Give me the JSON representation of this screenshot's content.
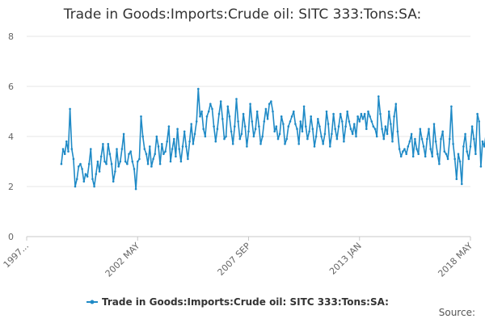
{
  "chart_data": {
    "type": "line",
    "title": "Trade in Goods:Imports:Crude oil: SITC 333:Tons:SA:",
    "xlabel": "",
    "ylabel": "",
    "ylim": [
      0,
      8
    ],
    "y_ticks": [
      "0",
      "2",
      "4",
      "6",
      "8"
    ],
    "x_ticks": [
      "1997...",
      "2002 MAY",
      "2007 SEP",
      "2013 JAN",
      "2018 MAY"
    ],
    "x_range": [
      "1997-01",
      "2018-05"
    ],
    "grid": true,
    "legend_position": "bottom",
    "color": "#1f8ac6",
    "series": [
      {
        "name": "Trade in Goods:Imports:Crude oil: SITC 333:Tons:SA:",
        "x_start": "1998-09",
        "frequency": "monthly",
        "values": [
          2.9,
          3.5,
          3.3,
          3.8,
          3.4,
          5.1,
          3.5,
          3.1,
          2.0,
          2.3,
          2.8,
          2.9,
          2.7,
          2.2,
          2.5,
          2.4,
          2.9,
          3.5,
          2.3,
          2.0,
          2.5,
          3.0,
          2.6,
          3.2,
          3.7,
          3.0,
          2.9,
          3.7,
          3.3,
          2.9,
          2.2,
          2.6,
          3.5,
          2.8,
          3.0,
          3.5,
          4.1,
          3.0,
          2.9,
          3.3,
          3.4,
          3.0,
          2.7,
          1.9,
          3.0,
          3.1,
          4.8,
          4.0,
          3.5,
          3.3,
          2.9,
          3.6,
          2.8,
          3.1,
          3.3,
          4.0,
          3.6,
          2.9,
          3.7,
          3.3,
          3.4,
          3.8,
          4.4,
          3.0,
          3.5,
          3.9,
          3.2,
          4.3,
          3.5,
          3.0,
          3.6,
          4.2,
          3.6,
          3.1,
          3.8,
          4.5,
          3.7,
          4.1,
          4.6,
          5.9,
          4.8,
          5.0,
          4.3,
          4.0,
          4.8,
          5.0,
          5.3,
          5.1,
          4.4,
          3.8,
          4.3,
          4.9,
          5.4,
          4.7,
          3.9,
          4.0,
          5.2,
          4.8,
          4.2,
          3.7,
          4.4,
          5.5,
          4.6,
          3.9,
          4.1,
          4.9,
          4.4,
          3.6,
          4.2,
          5.3,
          4.6,
          4.0,
          4.3,
          5.0,
          4.4,
          3.7,
          4.0,
          4.6,
          5.1,
          4.7,
          5.3,
          5.4,
          5.0,
          4.2,
          4.4,
          3.9,
          4.1,
          4.8,
          4.5,
          3.7,
          3.9,
          4.4,
          4.6,
          4.8,
          5.0,
          4.5,
          4.3,
          3.7,
          4.6,
          4.2,
          5.2,
          4.4,
          3.9,
          4.2,
          4.8,
          4.3,
          3.6,
          4.0,
          4.7,
          4.4,
          4.0,
          3.7,
          4.1,
          5.0,
          4.5,
          3.6,
          4.1,
          4.9,
          4.3,
          3.9,
          4.4,
          4.9,
          4.6,
          3.8,
          4.4,
          5.0,
          4.6,
          4.3,
          4.1,
          4.5,
          4.0,
          4.8,
          4.6,
          4.9,
          4.7,
          4.9,
          4.3,
          5.0,
          4.8,
          4.6,
          4.4,
          4.3,
          4.0,
          5.6,
          4.9,
          4.3,
          3.9,
          4.4,
          4.1,
          5.0,
          4.5,
          3.8,
          4.8,
          5.3,
          4.2,
          3.5,
          3.2,
          3.4,
          3.5,
          3.3,
          3.6,
          3.8,
          4.1,
          3.2,
          3.9,
          3.5,
          3.3,
          4.3,
          3.9,
          3.6,
          3.2,
          3.9,
          4.3,
          3.5,
          3.2,
          4.5,
          3.8,
          3.3,
          2.9,
          3.9,
          4.2,
          3.4,
          3.3,
          3.1,
          3.9,
          5.2,
          3.7,
          3.1,
          2.3,
          3.3,
          3.0,
          2.1,
          3.6,
          4.1,
          3.4,
          3.1,
          3.6,
          4.4,
          3.9,
          3.3,
          4.9,
          4.6,
          2.8,
          3.8,
          3.6,
          4.1,
          4.6,
          3.6,
          4.1,
          4.5,
          3.8,
          4.7,
          3.9,
          4.0,
          4.7,
          3.6,
          4.1,
          3.5,
          3.3,
          4.0,
          3.8,
          3.5
        ]
      }
    ]
  },
  "footer": {
    "source_label": "Source:"
  }
}
